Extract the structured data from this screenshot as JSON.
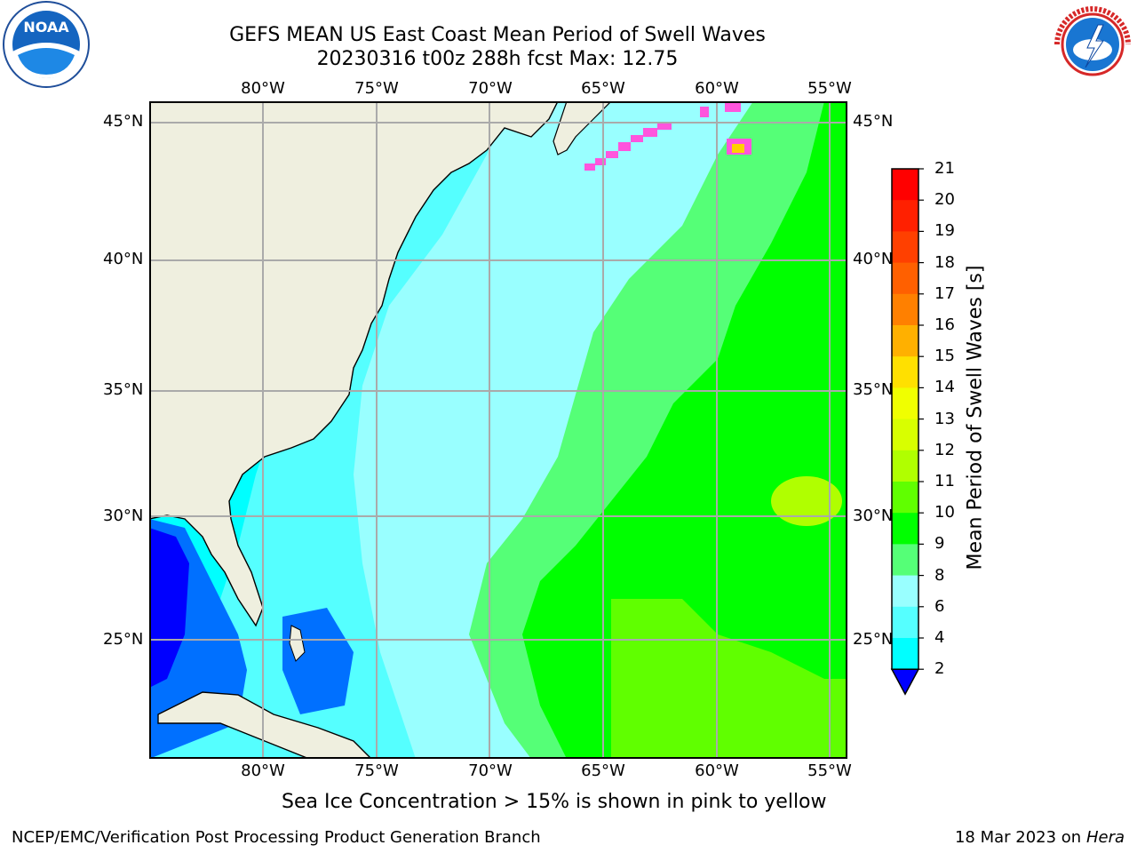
{
  "title_line1": "GEFS MEAN US East Coast Mean Period of Swell Waves",
  "title_line2": "20230316 t00z 288h fcst   Max: 12.75",
  "lon_labels": [
    "80°W",
    "75°W",
    "70°W",
    "65°W",
    "60°W",
    "55°W"
  ],
  "lat_labels": [
    "45°N",
    "40°N",
    "35°N",
    "30°N",
    "25°N"
  ],
  "colorbar": {
    "label": "Mean Period of Swell Waves [s]",
    "ticks": [
      "21",
      "20",
      "19",
      "18",
      "17",
      "16",
      "15",
      "14",
      "13",
      "12",
      "11",
      "10",
      "9",
      "8",
      "6",
      "4",
      "2"
    ],
    "colors": [
      "#ff0000",
      "#ff2000",
      "#ff4000",
      "#ff6000",
      "#ff8000",
      "#ffb000",
      "#ffe000",
      "#f0ff00",
      "#d8ff00",
      "#b0ff00",
      "#60ff00",
      "#00ff00",
      "#55ff77",
      "#99ffff",
      "#55ffff",
      "#00ffff",
      "#00ccff",
      "#0070ff",
      "#0000ff"
    ]
  },
  "note": "Sea Ice Concentration > 15% is shown in pink to yellow",
  "footer_left": "NCEP/EMC/Verification Post Processing Product Generation Branch",
  "footer_right_date": "18 Mar 2023 on",
  "footer_right_host": "Hera",
  "logos": {
    "noaa_text": "NOAA",
    "nws_text": "NATIONAL WEATHER SERVICE"
  }
}
